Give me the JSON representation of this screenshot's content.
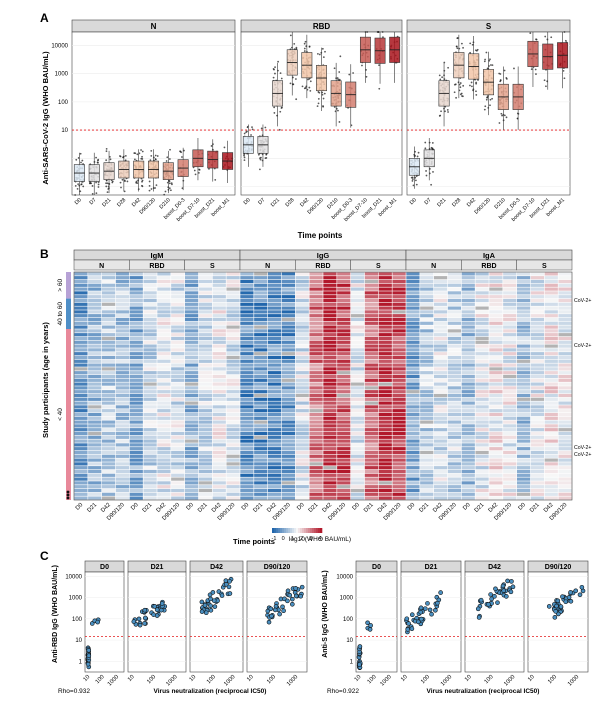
{
  "panel_letters": [
    "A",
    "B",
    "C"
  ],
  "chart_data": [
    {
      "type": "box",
      "panel": "A",
      "ylabel": "Anti-SARS-CoV-2 IgG (WHO BAU/mL)",
      "xlabel": "Time points",
      "y_scale": "log10",
      "ylim": [
        0.05,
        30000
      ],
      "yticks": [
        "10",
        "100",
        "1000",
        "10000"
      ],
      "threshold": 10,
      "categories": [
        "D0",
        "D7",
        "D21",
        "D28",
        "D42",
        "D90/120",
        "D210",
        "boost_D0-3",
        "boost_D7-10",
        "boost_D21",
        "boost_M1"
      ],
      "colors": {
        "low": "#dce9f5",
        "mid": "#f2c5a8",
        "high": "#a8141c",
        "threshold_line": "#e41a1c"
      },
      "facets": [
        {
          "name": "N",
          "medians": [
            0.3,
            0.3,
            0.35,
            0.4,
            0.4,
            0.4,
            0.35,
            0.45,
            1.0,
            0.9,
            0.8
          ]
        },
        {
          "name": "RBD",
          "medians": [
            3,
            3,
            200,
            2500,
            2000,
            700,
            200,
            180,
            7000,
            6500,
            7000
          ]
        },
        {
          "name": "S",
          "medians": [
            0.5,
            1.0,
            200,
            2000,
            1800,
            500,
            150,
            150,
            5000,
            4000,
            4500
          ]
        }
      ]
    },
    {
      "type": "heatmap",
      "panel": "B",
      "ylabel": "Study participants (age in years)",
      "xlabel": "Time points",
      "colorbar_label": "log10(WHO BAU/mL)",
      "colorbar_ticks": [
        "-1",
        "0",
        "1",
        "2",
        "3",
        "4"
      ],
      "isotypes": [
        "IgM",
        "IgG",
        "IgA"
      ],
      "antigens": [
        "N",
        "RBD",
        "S"
      ],
      "timepoints": [
        "D0",
        "D21",
        "D42",
        "D90/120"
      ],
      "age_groups": [
        "> 60",
        "40 to 60",
        "< 40"
      ],
      "annotations": [
        "CoV-2+",
        "CoV-2+",
        "CoV-2+",
        "CoV-2+"
      ]
    },
    {
      "type": "scatter",
      "panel": "C",
      "xlabel": "Virus neutralization (reciprocal IC50)",
      "x_scale": "log10",
      "y_scale": "log10",
      "xticks": [
        "10",
        "100",
        "1000"
      ],
      "yticks": [
        "1",
        "10",
        "100",
        "1000",
        "10000"
      ],
      "facets": [
        "D0",
        "D21",
        "D42",
        "D90/120"
      ],
      "plots": [
        {
          "ylabel": "Anti-RBD IgG (WHO BAU/mL)",
          "rho": "Rho=0.932"
        },
        {
          "ylabel": "Anti-S IgG (WHO BAU/mL)",
          "rho": "Rho=0.922"
        }
      ]
    }
  ]
}
